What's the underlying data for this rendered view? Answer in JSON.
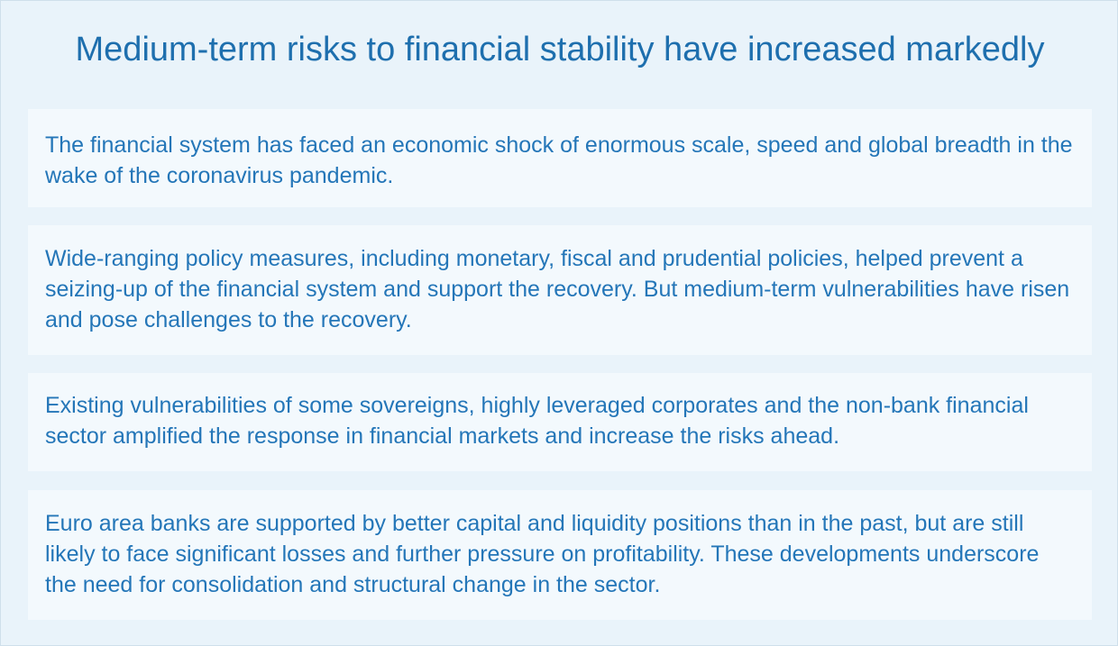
{
  "title": "Medium-term risks to financial stability have increased markedly",
  "points": [
    "The financial system has faced an economic shock of enormous scale, speed and global breadth in the wake of the coronavirus pandemic.",
    "Wide-ranging policy measures, including monetary, fiscal and prudential policies, helped prevent a seizing-up of the financial system and support the recovery. But medium-term vulnerabilities have risen and pose challenges to the recovery.",
    "Existing vulnerabilities of some sovereigns, highly leveraged corporates and the non-bank financial sector amplified the response in financial markets and increase the risks ahead.",
    "Euro area banks are supported by better capital and liquidity positions than in the past, but are still likely to face significant losses and further pressure on profitability. These developments underscore the need for consolidation and structural change in the sector."
  ],
  "colors": {
    "background": "#e9f3fa",
    "panel": "#f3f9fd",
    "title": "#1e6fae",
    "text": "#2476b8"
  }
}
